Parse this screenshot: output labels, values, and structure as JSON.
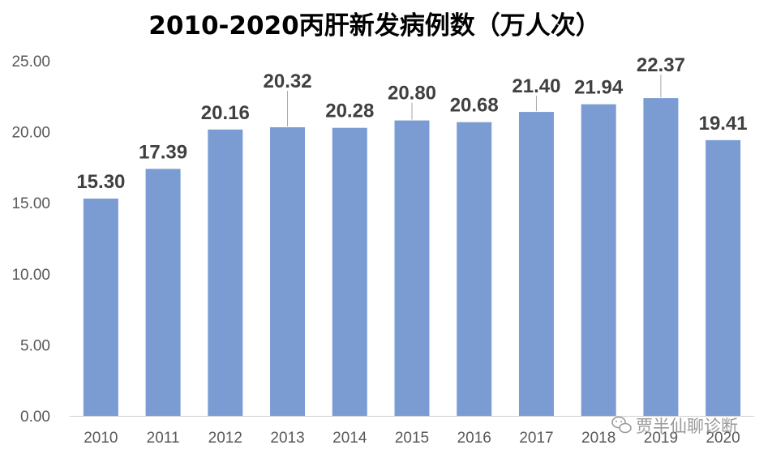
{
  "chart_data": {
    "type": "bar",
    "title": "2010-2020丙肝新发病例数（万人次）",
    "categories": [
      "2010",
      "2011",
      "2012",
      "2013",
      "2014",
      "2015",
      "2016",
      "2017",
      "2018",
      "2019",
      "2020"
    ],
    "values": [
      15.3,
      17.39,
      20.16,
      20.32,
      20.28,
      20.8,
      20.68,
      21.4,
      21.94,
      22.37,
      19.41
    ],
    "data_labels": [
      "15.30",
      "17.39",
      "20.16",
      "20.32",
      "20.28",
      "20.80",
      "20.68",
      "21.40",
      "21.94",
      "22.37",
      "19.41"
    ],
    "yticks": [
      "0.00",
      "5.00",
      "10.00",
      "15.00",
      "20.00",
      "25.00"
    ],
    "ylim": [
      0,
      25
    ],
    "xlabel": "",
    "ylabel": "",
    "grid": false,
    "bar_color": "#7a9cd3"
  },
  "watermark": {
    "text": "贾半仙聊诊断",
    "icon": "wechat-icon"
  }
}
